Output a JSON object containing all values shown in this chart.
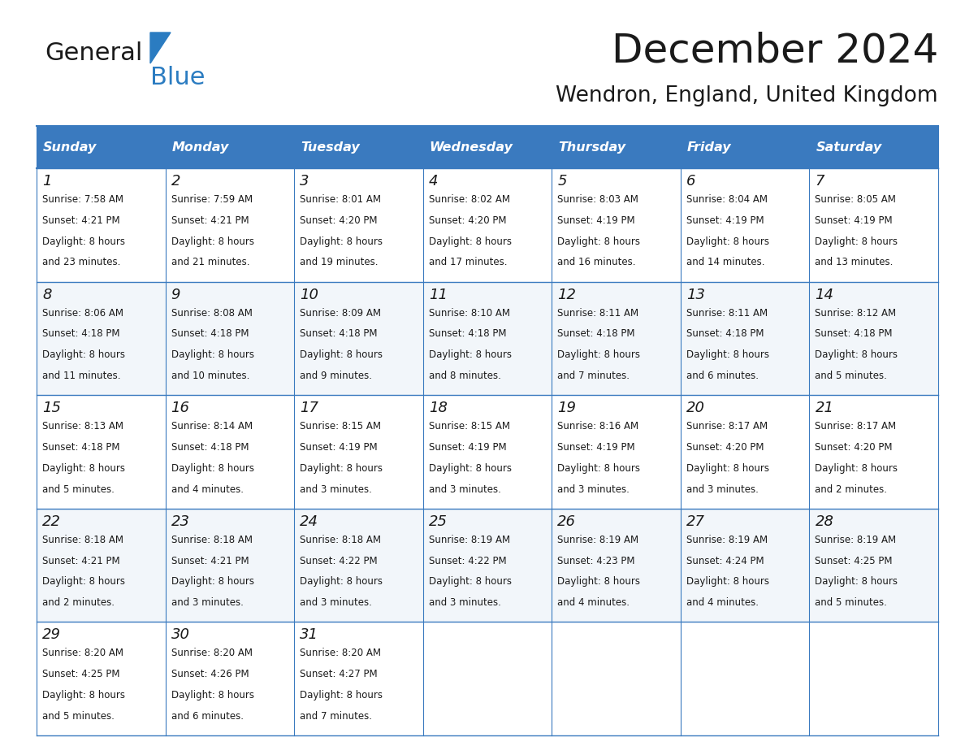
{
  "title": "December 2024",
  "subtitle": "Wendron, England, United Kingdom",
  "header_color": "#3a7abf",
  "header_text_color": "#ffffff",
  "border_color": "#3a7abf",
  "day_names": [
    "Sunday",
    "Monday",
    "Tuesday",
    "Wednesday",
    "Thursday",
    "Friday",
    "Saturday"
  ],
  "weeks": [
    [
      {
        "day": 1,
        "sunrise": "7:58 AM",
        "sunset": "4:21 PM",
        "daylight": "8 hours and 23 minutes."
      },
      {
        "day": 2,
        "sunrise": "7:59 AM",
        "sunset": "4:21 PM",
        "daylight": "8 hours and 21 minutes."
      },
      {
        "day": 3,
        "sunrise": "8:01 AM",
        "sunset": "4:20 PM",
        "daylight": "8 hours and 19 minutes."
      },
      {
        "day": 4,
        "sunrise": "8:02 AM",
        "sunset": "4:20 PM",
        "daylight": "8 hours and 17 minutes."
      },
      {
        "day": 5,
        "sunrise": "8:03 AM",
        "sunset": "4:19 PM",
        "daylight": "8 hours and 16 minutes."
      },
      {
        "day": 6,
        "sunrise": "8:04 AM",
        "sunset": "4:19 PM",
        "daylight": "8 hours and 14 minutes."
      },
      {
        "day": 7,
        "sunrise": "8:05 AM",
        "sunset": "4:19 PM",
        "daylight": "8 hours and 13 minutes."
      }
    ],
    [
      {
        "day": 8,
        "sunrise": "8:06 AM",
        "sunset": "4:18 PM",
        "daylight": "8 hours and 11 minutes."
      },
      {
        "day": 9,
        "sunrise": "8:08 AM",
        "sunset": "4:18 PM",
        "daylight": "8 hours and 10 minutes."
      },
      {
        "day": 10,
        "sunrise": "8:09 AM",
        "sunset": "4:18 PM",
        "daylight": "8 hours and 9 minutes."
      },
      {
        "day": 11,
        "sunrise": "8:10 AM",
        "sunset": "4:18 PM",
        "daylight": "8 hours and 8 minutes."
      },
      {
        "day": 12,
        "sunrise": "8:11 AM",
        "sunset": "4:18 PM",
        "daylight": "8 hours and 7 minutes."
      },
      {
        "day": 13,
        "sunrise": "8:11 AM",
        "sunset": "4:18 PM",
        "daylight": "8 hours and 6 minutes."
      },
      {
        "day": 14,
        "sunrise": "8:12 AM",
        "sunset": "4:18 PM",
        "daylight": "8 hours and 5 minutes."
      }
    ],
    [
      {
        "day": 15,
        "sunrise": "8:13 AM",
        "sunset": "4:18 PM",
        "daylight": "8 hours and 5 minutes."
      },
      {
        "day": 16,
        "sunrise": "8:14 AM",
        "sunset": "4:18 PM",
        "daylight": "8 hours and 4 minutes."
      },
      {
        "day": 17,
        "sunrise": "8:15 AM",
        "sunset": "4:19 PM",
        "daylight": "8 hours and 3 minutes."
      },
      {
        "day": 18,
        "sunrise": "8:15 AM",
        "sunset": "4:19 PM",
        "daylight": "8 hours and 3 minutes."
      },
      {
        "day": 19,
        "sunrise": "8:16 AM",
        "sunset": "4:19 PM",
        "daylight": "8 hours and 3 minutes."
      },
      {
        "day": 20,
        "sunrise": "8:17 AM",
        "sunset": "4:20 PM",
        "daylight": "8 hours and 3 minutes."
      },
      {
        "day": 21,
        "sunrise": "8:17 AM",
        "sunset": "4:20 PM",
        "daylight": "8 hours and 2 minutes."
      }
    ],
    [
      {
        "day": 22,
        "sunrise": "8:18 AM",
        "sunset": "4:21 PM",
        "daylight": "8 hours and 2 minutes."
      },
      {
        "day": 23,
        "sunrise": "8:18 AM",
        "sunset": "4:21 PM",
        "daylight": "8 hours and 3 minutes."
      },
      {
        "day": 24,
        "sunrise": "8:18 AM",
        "sunset": "4:22 PM",
        "daylight": "8 hours and 3 minutes."
      },
      {
        "day": 25,
        "sunrise": "8:19 AM",
        "sunset": "4:22 PM",
        "daylight": "8 hours and 3 minutes."
      },
      {
        "day": 26,
        "sunrise": "8:19 AM",
        "sunset": "4:23 PM",
        "daylight": "8 hours and 4 minutes."
      },
      {
        "day": 27,
        "sunrise": "8:19 AM",
        "sunset": "4:24 PM",
        "daylight": "8 hours and 4 minutes."
      },
      {
        "day": 28,
        "sunrise": "8:19 AM",
        "sunset": "4:25 PM",
        "daylight": "8 hours and 5 minutes."
      }
    ],
    [
      {
        "day": 29,
        "sunrise": "8:20 AM",
        "sunset": "4:25 PM",
        "daylight": "8 hours and 5 minutes."
      },
      {
        "day": 30,
        "sunrise": "8:20 AM",
        "sunset": "4:26 PM",
        "daylight": "8 hours and 6 minutes."
      },
      {
        "day": 31,
        "sunrise": "8:20 AM",
        "sunset": "4:27 PM",
        "daylight": "8 hours and 7 minutes."
      },
      null,
      null,
      null,
      null
    ]
  ],
  "logo_text1": "General",
  "logo_text2": "Blue",
  "logo_color1": "#1a1a1a",
  "logo_color2": "#2b7cc1",
  "logo_triangle_color": "#2b7cc1"
}
